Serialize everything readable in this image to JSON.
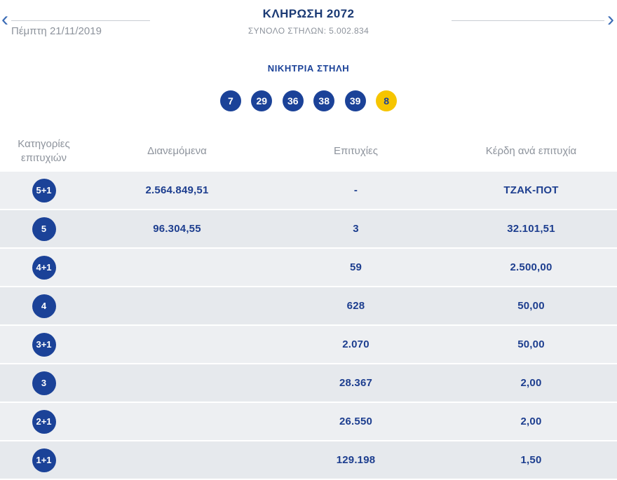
{
  "header": {
    "prev_icon": "‹",
    "next_icon": "›",
    "date": "Πέμπτη 21/11/2019",
    "title": "ΚΛΗΡΩΣΗ 2072",
    "total_columns": "ΣΥΝΟΛΟ ΣΤΗΛΩΝ: 5.002.834"
  },
  "winning": {
    "label": "ΝΙΚΗΤΡΙΑ ΣΤΗΛΗ",
    "numbers": [
      "7",
      "29",
      "36",
      "38",
      "39"
    ],
    "joker": "8"
  },
  "table": {
    "headers": {
      "category_line1": "Κατηγορίες",
      "category_line2": "επιτυχιών",
      "distributed": "Διανεμόμενα",
      "winners": "Επιτυχίες",
      "prize": "Κέρδη ανά επιτυχία"
    },
    "rows": [
      {
        "category": "5+1",
        "distributed": "2.564.849,51",
        "winners": "-",
        "prize": "ΤΖΑΚ-ΠΟΤ"
      },
      {
        "category": "5",
        "distributed": "96.304,55",
        "winners": "3",
        "prize": "32.101,51"
      },
      {
        "category": "4+1",
        "distributed": "",
        "winners": "59",
        "prize": "2.500,00"
      },
      {
        "category": "4",
        "distributed": "",
        "winners": "628",
        "prize": "50,00"
      },
      {
        "category": "3+1",
        "distributed": "",
        "winners": "2.070",
        "prize": "50,00"
      },
      {
        "category": "3",
        "distributed": "",
        "winners": "28.367",
        "prize": "2,00"
      },
      {
        "category": "2+1",
        "distributed": "",
        "winners": "26.550",
        "prize": "2,00"
      },
      {
        "category": "1+1",
        "distributed": "",
        "winners": "129.198",
        "prize": "1,50"
      }
    ]
  },
  "colors": {
    "primary_blue": "#1b4298",
    "title_navy": "#1b3a74",
    "value_blue": "#1d3e8f",
    "joker_yellow": "#f6c500",
    "gray_text": "#8d939c",
    "row_bg_odd": "#edeff2",
    "row_bg_even": "#e6e9ed"
  }
}
